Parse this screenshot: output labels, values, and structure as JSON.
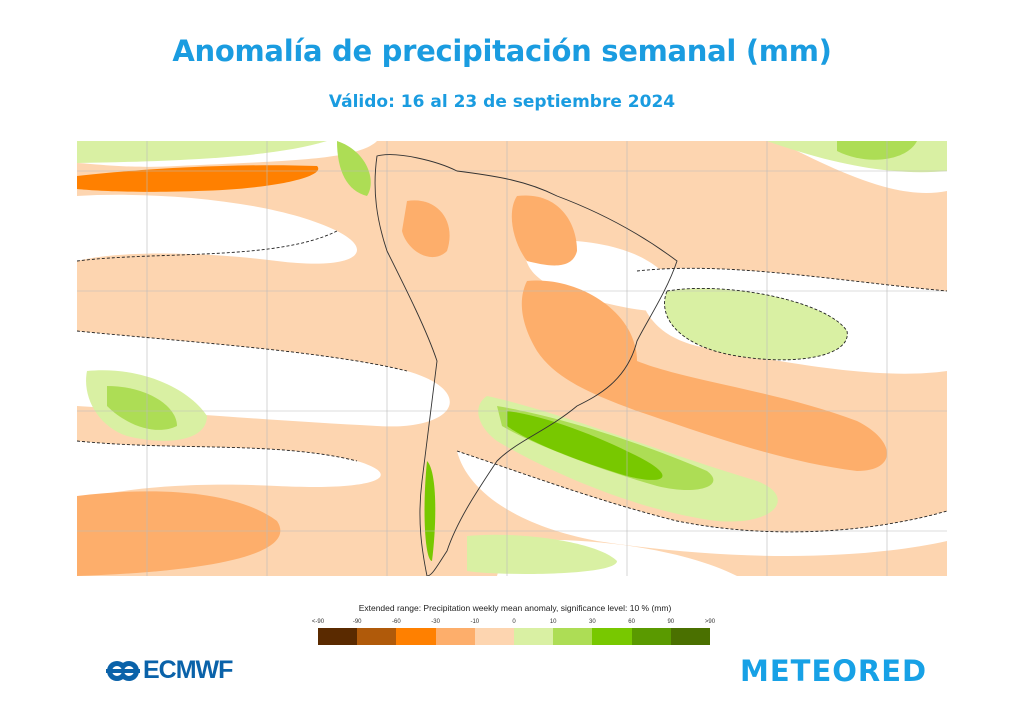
{
  "header": {
    "title": "Anomalía de precipitación semanal (mm)",
    "subtitle": "Válido: 16 al 23 de septiembre 2024"
  },
  "map": {
    "region": "South America and adjacent oceans",
    "colors": {
      "ocean_neutral": "#ffffff",
      "dry_light": "#fdd5b0",
      "dry_moderate": "#fdae6b",
      "dry_strong": "#ff8000",
      "wet_light": "#d9f0a3",
      "wet_moderate": "#addd55",
      "wet_strong": "#78c800",
      "coastline": "#333333",
      "significance_contour": "#222222"
    }
  },
  "legend": {
    "title": "Extended range: Precipitation weekly mean anomaly, significance level: 10 % (mm)",
    "ticks": [
      "<-90",
      "-90",
      "-60",
      "-30",
      "-10",
      "0",
      "10",
      "30",
      "60",
      "90",
      ">90"
    ],
    "colors": [
      "#5a2a00",
      "#b05a0a",
      "#ff8000",
      "#fdae6b",
      "#fdd5b0",
      "#d9f0a3",
      "#addd55",
      "#78c800",
      "#5a9a00",
      "#4a7000"
    ]
  },
  "logos": {
    "left": "ECMWF",
    "right": "METEORED"
  }
}
